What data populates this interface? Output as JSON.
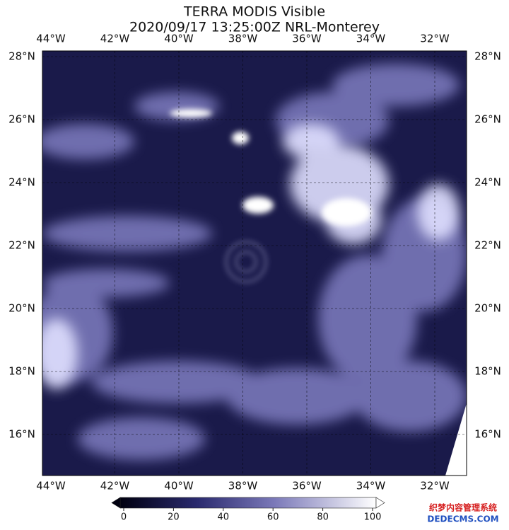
{
  "header": {
    "title": "TERRA MODIS Visible",
    "subtitle": "2020/09/17 13:25:00Z NRL-Monterey"
  },
  "longitudes": [
    "44°W",
    "42°W",
    "40°W",
    "38°W",
    "36°W",
    "34°W",
    "32°W"
  ],
  "latitudes": [
    "28°N",
    "26°N",
    "24°N",
    "22°N",
    "20°N",
    "18°N",
    "16°N"
  ],
  "colorbar": {
    "lim": [
      0,
      100
    ],
    "ticks": [
      0,
      20,
      40,
      60,
      80,
      100
    ]
  },
  "watermark": {
    "line1": "织梦内容管理系统",
    "line2": "DEDECMS.COM"
  }
}
